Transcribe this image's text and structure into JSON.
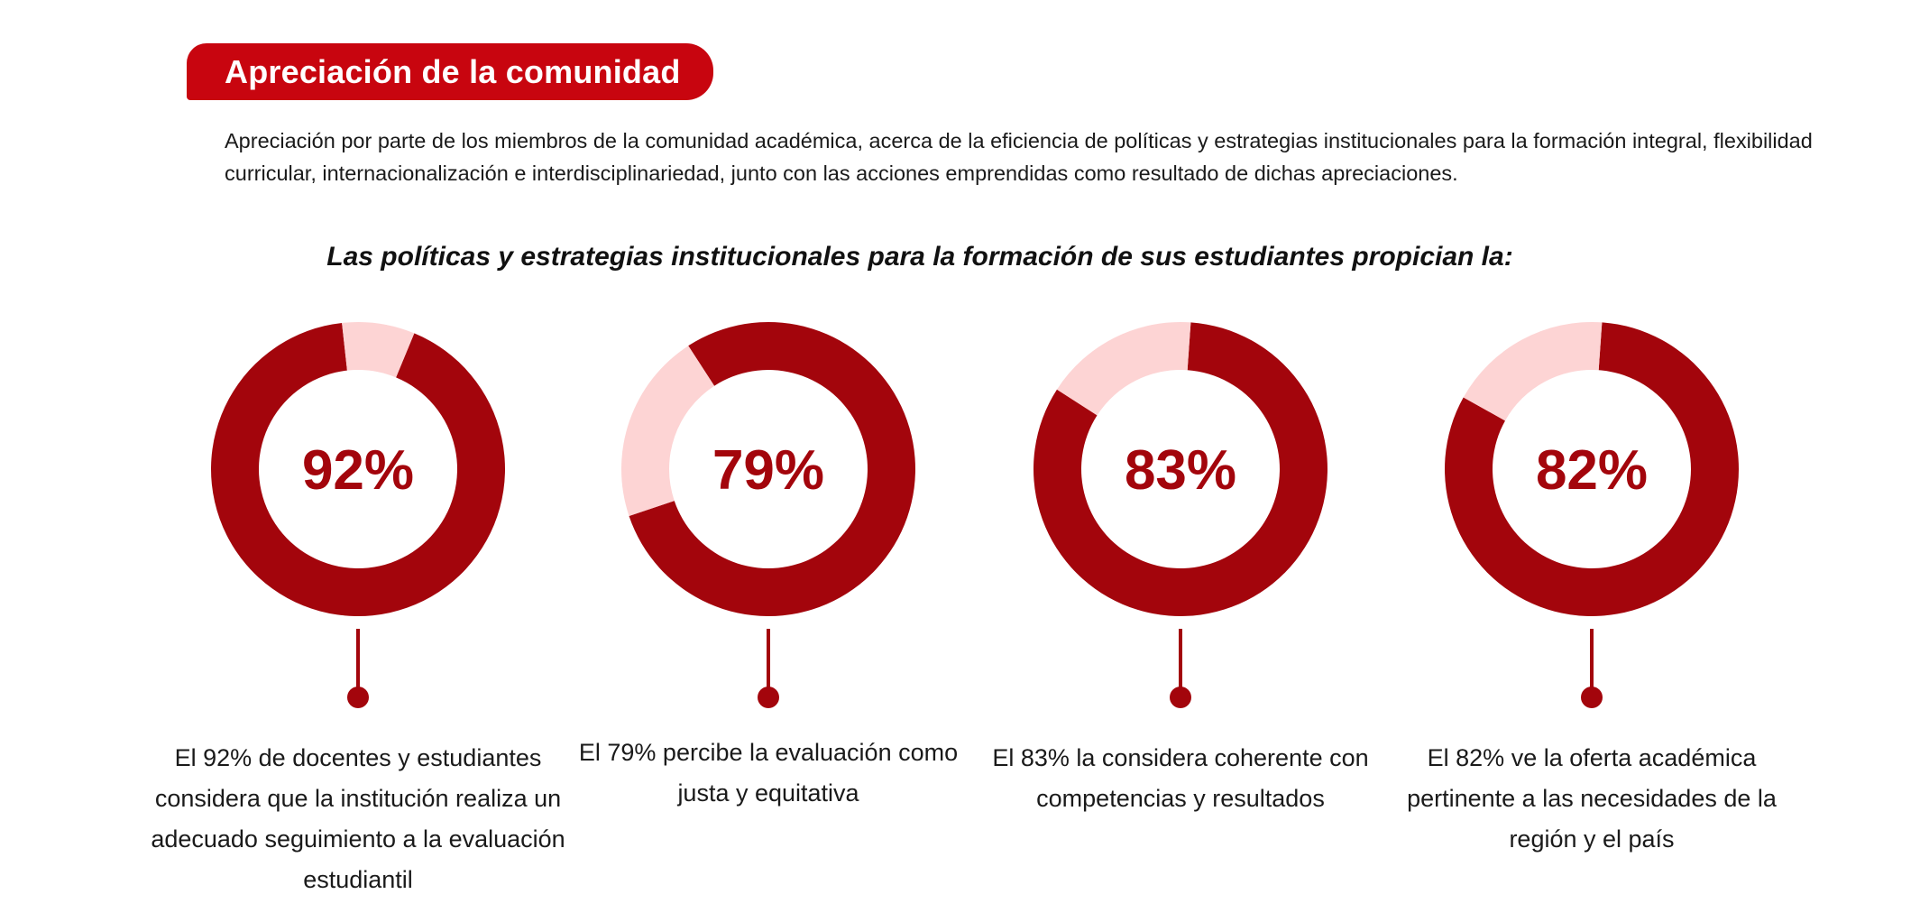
{
  "header": {
    "title": "Apreciación de la comunidad",
    "intro": "Apreciación por parte de los miembros de la comunidad académica, acerca de la eficiencia de políticas y estrategias institucionales para la formación integral, flexibilidad curricular, internacionalización e interdisciplinariedad, junto con las acciones emprendidas como resultado de dichas apreciaciones.",
    "question": "Las políticas y estrategias institucionales para la formación de sus estudiantes propician la:"
  },
  "colors": {
    "accent": "#c8050f",
    "primary_arc": "#a3050c",
    "remainder_arc": "#fdd4d4"
  },
  "chart_data": {
    "type": "pie",
    "subtype": "donut",
    "title": "Las políticas y estrategias institucionales para la formación de sus estudiantes propician la:",
    "donuts": [
      {
        "value": 92,
        "label": "92%",
        "caption": "El 92% de docentes y estudiantes considera que la institución realiza un adecuado seguimiento a la evaluación estudiantil"
      },
      {
        "value": 79,
        "label": "79%",
        "caption": "El 79% percibe la evaluación como justa y equitativa"
      },
      {
        "value": 83,
        "label": "83%",
        "caption": "El 83% la considera coherente con competencias y resultados"
      },
      {
        "value": 82,
        "label": "82%",
        "caption": "El 82% ve la oferta académica pertinente a las necesidades de la región y el país"
      }
    ]
  }
}
